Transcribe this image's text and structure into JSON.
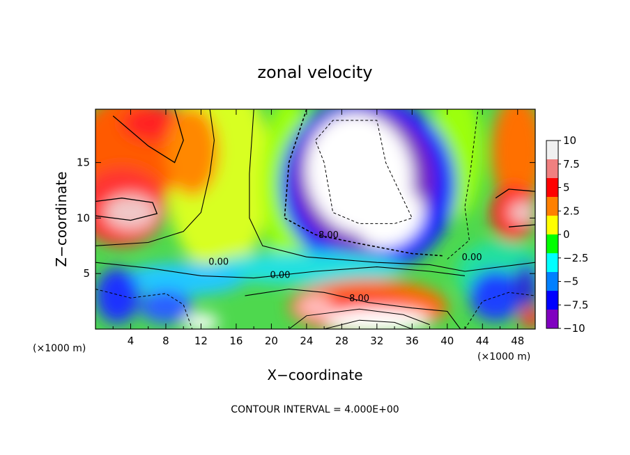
{
  "chart_data": {
    "type": "heatmap",
    "title": "zonal velocity",
    "xlabel": "X−coordinate",
    "ylabel": "Z−coordinate",
    "x_unit_left": "(×1000 m)",
    "x_unit_right": "(×1000 m)",
    "footer": "CONTOUR INTERVAL = 4.000E+00",
    "xlim": [
      0,
      50
    ],
    "ylim": [
      0,
      19.8
    ],
    "x_ticks": [
      4,
      8,
      12,
      16,
      20,
      24,
      28,
      32,
      36,
      40,
      44,
      48
    ],
    "x_tick_labels": [
      "4",
      "8",
      "12",
      "16",
      "20",
      "24",
      "28",
      "32",
      "36",
      "40",
      "44",
      "48"
    ],
    "y_ticks": [
      5,
      10,
      15
    ],
    "y_tick_labels": [
      "5",
      "10",
      "15"
    ],
    "colorbar": {
      "range": [
        -10,
        10
      ],
      "ticks": [
        10,
        7.5,
        5,
        2.5,
        0,
        -2.5,
        -5,
        -7.5,
        -10
      ],
      "tick_labels": [
        "10",
        "7.5",
        "5",
        "2.5",
        "0",
        "−2.5",
        "−5",
        "−7.5",
        "−10"
      ],
      "colors": [
        "#f0f0f0",
        "#f08080",
        "#ff0000",
        "#ff8000",
        "#ffff00",
        "#00ff00",
        "#00ffff",
        "#0080ff",
        "#0000ff",
        "#8000c0"
      ]
    },
    "contour_interval": 4.0,
    "contour_labels": [
      {
        "text": "0.00",
        "x": 14.0,
        "y": 5.8
      },
      {
        "text": "0.00",
        "x": 21.0,
        "y": 4.6
      },
      {
        "text": "8.00",
        "x": 26.5,
        "y": 8.2
      },
      {
        "text": "8.00",
        "x": 30.0,
        "y": 2.5
      },
      {
        "text": "0.00",
        "x": 42.8,
        "y": 6.2
      }
    ]
  }
}
